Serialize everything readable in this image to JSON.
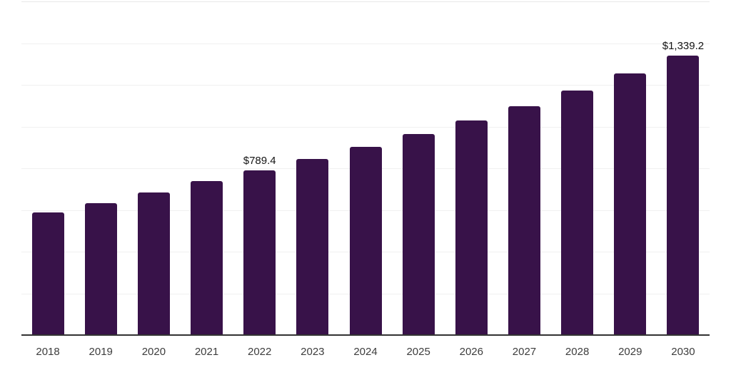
{
  "chart_data": {
    "type": "bar",
    "title": "",
    "xlabel": "",
    "ylabel": "",
    "categories": [
      "2018",
      "2019",
      "2020",
      "2021",
      "2022",
      "2023",
      "2024",
      "2025",
      "2026",
      "2027",
      "2028",
      "2029",
      "2030"
    ],
    "values": [
      589.0,
      632.5,
      685.0,
      740.0,
      789.4,
      843.3,
      900.9,
      962.5,
      1028.3,
      1098.5,
      1173.5,
      1253.7,
      1339.2
    ],
    "annotations": [
      {
        "category": "2022",
        "text": "$789.4"
      },
      {
        "category": "2030",
        "text": "$1,339.2"
      }
    ],
    "ylim": [
      0,
      1600
    ],
    "gridline_step": 200,
    "grid": true,
    "legend_position": "none",
    "y_tick_labels_visible": false,
    "colors": {
      "bar": "#381249",
      "gridline": "#f0f0f0",
      "top_gridline": "#e8e8e8",
      "axis_line": "#333333",
      "tick_label": "#3d3d3d",
      "annotation": "#141414",
      "background": "#ffffff"
    }
  }
}
